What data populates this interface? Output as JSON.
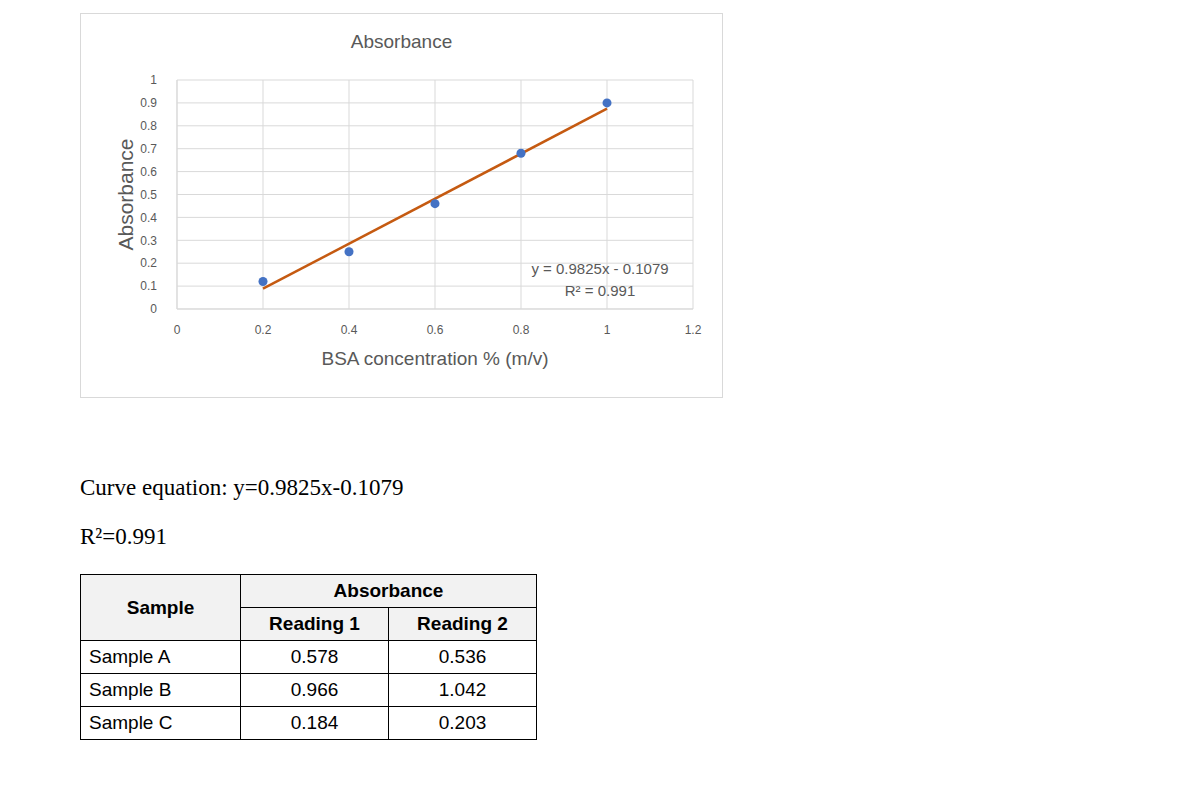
{
  "chart_data": {
    "type": "scatter",
    "title": "Absorbance",
    "x_label": "BSA concentration % (m/v)",
    "y_label": "Absorbance",
    "x": [
      0.2,
      0.4,
      0.6,
      0.8,
      1
    ],
    "values": [
      0.12,
      0.25,
      0.46,
      0.68,
      0.9
    ],
    "color": "#4472c4",
    "marker": "circle",
    "xlim": [
      0,
      1.2
    ],
    "xticks": [
      0,
      0.2,
      0.4,
      0.6,
      0.8,
      1,
      1.2
    ],
    "ylim": [
      0,
      1
    ],
    "yticks": [
      0,
      0.1,
      0.2,
      0.3,
      0.4,
      0.5,
      0.6,
      0.7,
      0.8,
      0.9,
      1
    ],
    "grid": true,
    "trendline": {
      "slope": 0.9825,
      "intercept": -0.1079,
      "equation": "y = 0.9825x - 0.1079",
      "r_squared_label": "R² = 0.991",
      "color": "#c55a11",
      "line_style": "solid"
    }
  },
  "text": {
    "curve_equation": "Curve equation: y=0.9825x-0.1079",
    "r_squared": "R²=0.991"
  },
  "table": {
    "header": {
      "first": "Sample",
      "group": "Absorbance",
      "columns": [
        "Reading 1",
        "Reading 2"
      ]
    },
    "rows": [
      [
        "Sample A",
        0.578,
        0.536
      ],
      [
        "Sample B",
        0.966,
        1.042
      ],
      [
        "Sample C",
        0.184,
        0.203
      ]
    ]
  }
}
